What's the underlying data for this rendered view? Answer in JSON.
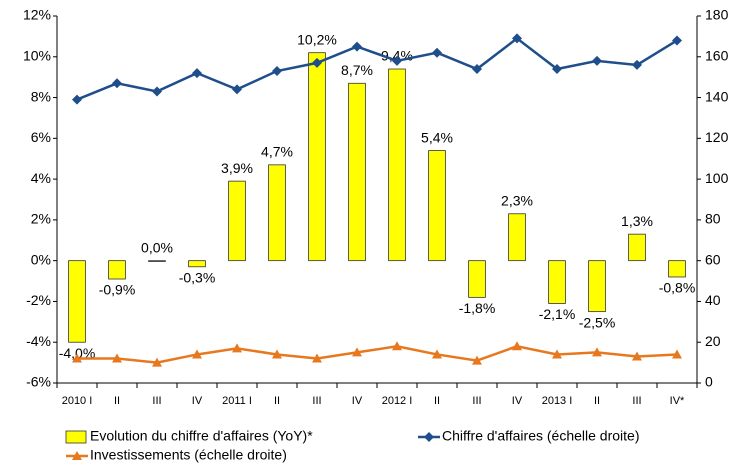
{
  "chart_data": {
    "type": "bar",
    "categories": [
      "2010 I",
      "II",
      "III",
      "IV",
      "2011 I",
      "II",
      "III",
      "IV",
      "2012 I",
      "II",
      "III",
      "IV",
      "2013 I",
      "II",
      "III",
      "IV*"
    ],
    "series": [
      {
        "name": "Evolution du chiffre d'affaires (YoY)*",
        "type": "bar",
        "color": "#ffff00",
        "values": [
          -4.0,
          -0.9,
          0.0,
          -0.3,
          3.9,
          4.7,
          10.2,
          8.7,
          9.4,
          5.4,
          -1.8,
          2.3,
          -2.1,
          -2.5,
          1.3,
          -0.8
        ],
        "value_labels": [
          "-4,0%",
          "-0,9%",
          "0,0%",
          "-0,3%",
          "3,9%",
          "4,7%",
          "10,2%",
          "8,7%",
          "9,4%",
          "5,4%",
          "-1,8%",
          "2,3%",
          "-2,1%",
          "-2,5%",
          "1,3%",
          "-0,8%"
        ]
      },
      {
        "name": "Chiffre d'affaires (échelle droite)",
        "type": "line",
        "axis": "y2",
        "color": "#1f4e8c",
        "marker": "diamond",
        "values": [
          139,
          147,
          143,
          152,
          144,
          153,
          157,
          165,
          158,
          162,
          154,
          169,
          154,
          158,
          156,
          168
        ]
      },
      {
        "name": "Investissements (échelle droite)",
        "type": "line",
        "axis": "y2",
        "color": "#e8781e",
        "marker": "triangle",
        "values": [
          12,
          12,
          10,
          14,
          17,
          14,
          12,
          15,
          18,
          14,
          11,
          18,
          14,
          15,
          13,
          14
        ]
      }
    ],
    "ylim": [
      -6,
      12
    ],
    "yticks": [
      {
        "value": -6,
        "label": "-6%"
      },
      {
        "value": -4,
        "label": "-4%"
      },
      {
        "value": -2,
        "label": "-2%"
      },
      {
        "value": 0,
        "label": "0%"
      },
      {
        "value": 2,
        "label": "2%"
      },
      {
        "value": 4,
        "label": "4%"
      },
      {
        "value": 6,
        "label": "6%"
      },
      {
        "value": 8,
        "label": "8%"
      },
      {
        "value": 10,
        "label": "10%"
      },
      {
        "value": 12,
        "label": "12%"
      }
    ],
    "y2lim": [
      0,
      180
    ],
    "y2ticks": [
      0,
      20,
      40,
      60,
      80,
      100,
      120,
      140,
      160,
      180
    ],
    "grid": false
  }
}
